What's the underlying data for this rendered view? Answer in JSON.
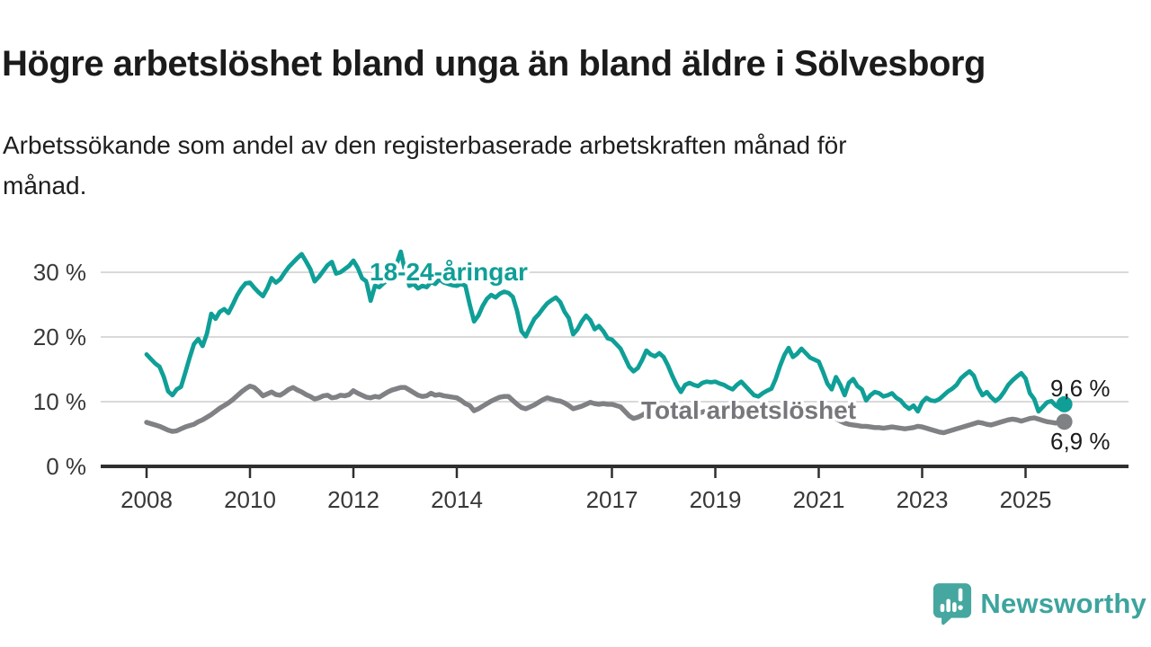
{
  "header": {
    "title": "Högre arbetslöshet bland unga än bland äldre i Sölvesborg",
    "subtitle_lines": [
      "Arbetssökande som andel av den registerbaserade arbetskraften månad för",
      "månad."
    ]
  },
  "chart_data": {
    "type": "line",
    "title": "Högre arbetslöshet bland unga än bland äldre i Sölvesborg",
    "xlabel": "",
    "ylabel": "",
    "grid": "horizontal",
    "legend_position": "inline-labels",
    "x_start_year": 2008,
    "x_start_month": 1,
    "x_freq": "monthly",
    "x_end_label": "2025-10",
    "x_tick_years": [
      2008,
      2010,
      2012,
      2014,
      2017,
      2019,
      2021,
      2023,
      2025
    ],
    "y_ticks": [
      0,
      10,
      20,
      30
    ],
    "y_tick_labels": [
      "0 %",
      "10 %",
      "20 %",
      "30 %"
    ],
    "ylim": [
      0,
      34.5
    ],
    "series": [
      {
        "name": "18-24-åringar",
        "color": "#0f9f97",
        "end_label": "9,6 %",
        "end_value": 9.6,
        "values": [
          17.3,
          16.6,
          15.9,
          15.4,
          13.8,
          11.6,
          11.0,
          11.9,
          12.3,
          14.5,
          16.8,
          18.9,
          19.7,
          18.6,
          20.5,
          23.6,
          22.8,
          23.9,
          24.3,
          23.7,
          25.0,
          26.4,
          27.5,
          28.3,
          28.4,
          27.6,
          26.9,
          26.3,
          27.5,
          29.1,
          28.4,
          28.9,
          29.9,
          30.8,
          31.5,
          32.2,
          32.8,
          31.7,
          30.5,
          28.6,
          29.3,
          30.2,
          31.1,
          31.6,
          29.8,
          30.0,
          30.5,
          31.0,
          31.8,
          30.7,
          29.1,
          28.6,
          25.6,
          27.9,
          27.7,
          28.3,
          28.8,
          29.8,
          31.2,
          33.2,
          30.2,
          27.9,
          28.2,
          27.5,
          27.9,
          27.7,
          28.5,
          28.2,
          28.9,
          28.4,
          28.2,
          28.0,
          27.9,
          28.2,
          27.9,
          25.0,
          22.4,
          23.3,
          24.8,
          25.9,
          26.5,
          26.1,
          26.7,
          27.0,
          26.8,
          26.2,
          24.0,
          20.9,
          20.1,
          21.5,
          22.8,
          23.5,
          24.4,
          25.2,
          25.7,
          26.1,
          25.4,
          23.9,
          22.9,
          20.4,
          21.2,
          22.4,
          23.3,
          22.6,
          21.2,
          21.7,
          20.9,
          19.8,
          19.6,
          18.9,
          18.2,
          16.8,
          15.4,
          14.7,
          15.2,
          16.4,
          17.9,
          17.3,
          17.0,
          17.5,
          16.9,
          15.6,
          14.0,
          12.6,
          11.5,
          12.6,
          12.9,
          12.6,
          12.4,
          12.9,
          13.1,
          13.0,
          13.1,
          12.8,
          12.6,
          12.2,
          11.9,
          12.6,
          13.1,
          12.4,
          11.7,
          11.0,
          10.8,
          11.3,
          11.7,
          12.0,
          13.5,
          15.5,
          17.2,
          18.3,
          16.9,
          17.4,
          18.2,
          17.5,
          16.8,
          16.5,
          16.2,
          14.6,
          12.8,
          11.9,
          13.8,
          12.6,
          11.0,
          12.9,
          13.5,
          12.4,
          11.9,
          10.2,
          11.0,
          11.5,
          11.3,
          10.8,
          11.0,
          11.3,
          10.6,
          10.2,
          9.4,
          8.9,
          9.4,
          8.5,
          9.9,
          10.6,
          10.2,
          10.1,
          10.4,
          11.0,
          11.6,
          12.0,
          12.6,
          13.6,
          14.2,
          14.7,
          14.0,
          12.2,
          11.0,
          11.5,
          10.7,
          10.1,
          10.6,
          11.5,
          12.6,
          13.3,
          13.9,
          14.4,
          13.6,
          11.3,
          10.4,
          8.5,
          9.2,
          9.9,
          10.1,
          9.4,
          9.0,
          9.6
        ]
      },
      {
        "name": "Total arbetslöshet",
        "color": "#7f8184",
        "end_label": "6,9 %",
        "end_value": 6.9,
        "values": [
          6.8,
          6.6,
          6.4,
          6.2,
          5.9,
          5.6,
          5.4,
          5.5,
          5.8,
          6.1,
          6.3,
          6.5,
          6.9,
          7.2,
          7.6,
          8.0,
          8.5,
          9.0,
          9.4,
          9.8,
          10.3,
          10.9,
          11.5,
          12.0,
          12.4,
          12.2,
          11.6,
          10.9,
          11.2,
          11.5,
          11.1,
          11.0,
          11.4,
          11.9,
          12.2,
          11.8,
          11.5,
          11.1,
          10.8,
          10.4,
          10.6,
          10.9,
          11.0,
          10.6,
          10.7,
          11.0,
          10.9,
          11.1,
          11.7,
          11.3,
          11.0,
          10.7,
          10.6,
          10.8,
          10.7,
          11.1,
          11.5,
          11.8,
          12.0,
          12.2,
          12.2,
          11.8,
          11.4,
          11.0,
          10.8,
          10.9,
          11.3,
          11.0,
          11.1,
          10.9,
          10.8,
          10.7,
          10.6,
          10.2,
          9.7,
          9.4,
          8.6,
          8.9,
          9.3,
          9.7,
          10.1,
          10.4,
          10.7,
          10.8,
          10.8,
          10.2,
          9.6,
          9.1,
          8.9,
          9.2,
          9.5,
          9.9,
          10.3,
          10.6,
          10.4,
          10.2,
          10.1,
          9.8,
          9.4,
          8.9,
          9.1,
          9.3,
          9.6,
          9.9,
          9.7,
          9.6,
          9.7,
          9.6,
          9.6,
          9.4,
          9.2,
          8.5,
          7.8,
          7.4,
          7.6,
          7.9,
          8.3,
          8.6,
          8.8,
          8.9,
          9.0,
          8.8,
          8.5,
          8.3,
          8.1,
          8.3,
          8.6,
          8.4,
          8.2,
          8.4,
          8.6,
          8.5,
          8.4,
          8.3,
          8.1,
          7.9,
          7.8,
          8.0,
          8.3,
          8.1,
          7.9,
          7.8,
          7.9,
          8.1,
          8.3,
          8.4,
          8.7,
          9.0,
          9.2,
          9.4,
          9.5,
          9.4,
          9.2,
          9.0,
          8.9,
          8.8,
          8.5,
          8.3,
          8.0,
          7.7,
          7.4,
          7.0,
          6.7,
          6.5,
          6.4,
          6.3,
          6.2,
          6.2,
          6.1,
          6.0,
          6.0,
          5.9,
          6.0,
          6.1,
          6.0,
          5.9,
          5.8,
          5.9,
          6.0,
          6.2,
          6.1,
          5.9,
          5.7,
          5.5,
          5.3,
          5.2,
          5.4,
          5.6,
          5.8,
          6.0,
          6.2,
          6.4,
          6.6,
          6.8,
          6.7,
          6.5,
          6.4,
          6.6,
          6.8,
          7.0,
          7.2,
          7.3,
          7.2,
          7.0,
          7.2,
          7.4,
          7.5,
          7.3,
          7.1,
          6.9,
          6.8,
          6.7,
          6.8,
          6.9
        ]
      }
    ]
  },
  "footer": {
    "brand": "Newsworthy",
    "brand_color": "#3da49e",
    "logo_icon": "newsworthy-speech-bubble-bar-chart"
  }
}
